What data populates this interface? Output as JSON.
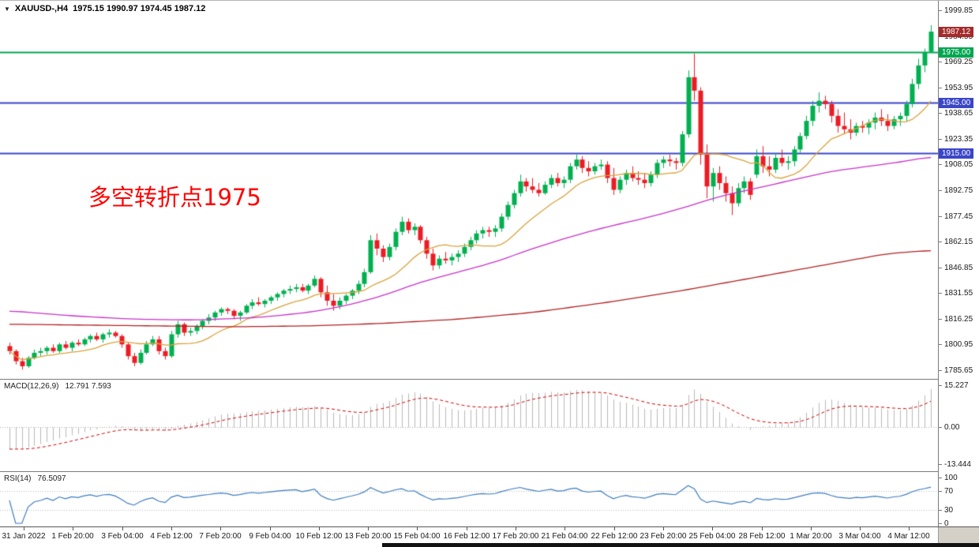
{
  "title_bar": {
    "collapse_icon": "▼",
    "symbol": "XAUUSD-,H4",
    "ohlc": "1975.15 1990.97 1974.45 1987.12"
  },
  "annotation": {
    "text": "多空转折点1975",
    "color": "#FF0000"
  },
  "chart_data": {
    "type": "candlestick",
    "instrument": "XAUUSD-",
    "timeframe": "H4",
    "current_ohlc": {
      "open": 1975.15,
      "high": 1990.97,
      "low": 1974.45,
      "close": 1987.12
    },
    "price_panel": {
      "y_range": [
        1785.65,
        1999.85
      ],
      "y_tick_labels": [
        "1999.85",
        "1984.55",
        "1969.25",
        "1953.95",
        "1938.65",
        "1923.35",
        "1908.05",
        "1892.75",
        "1877.45",
        "1862.15",
        "1846.85",
        "1831.55",
        "1816.25",
        "1800.95",
        "1785.65"
      ],
      "up_color": "#00B050",
      "down_color": "#EC1C24",
      "hlines": [
        {
          "price": 1975.0,
          "tag": "1975.00",
          "color": "#00A651"
        },
        {
          "price": 1945.0,
          "tag": "1945.00",
          "color": "#3A46C8"
        },
        {
          "price": 1915.0,
          "tag": "1915.00",
          "color": "#3A46C8"
        }
      ],
      "current_price_tag": {
        "price": 1987.12,
        "text": "1987.12",
        "color": "#A52A2A"
      },
      "moving_averages": [
        {
          "name": "ma-fast",
          "method": "sma",
          "period": 13,
          "color": "#D9A23B"
        },
        {
          "name": "ma-medium",
          "color": "#C832C8",
          "waypoints": [
            [
              0,
              1821
            ],
            [
              10,
              1818
            ],
            [
              20,
              1816
            ],
            [
              30,
              1815.5
            ],
            [
              40,
              1817
            ],
            [
              48,
              1820
            ],
            [
              54,
              1824
            ],
            [
              60,
              1830
            ],
            [
              66,
              1838
            ],
            [
              72,
              1844
            ],
            [
              78,
              1850
            ],
            [
              84,
              1858
            ],
            [
              90,
              1865
            ],
            [
              96,
              1871
            ],
            [
              102,
              1876
            ],
            [
              108,
              1882
            ],
            [
              114,
              1889
            ],
            [
              120,
              1894
            ],
            [
              126,
              1899
            ],
            [
              132,
              1904
            ],
            [
              138,
              1907
            ],
            [
              144,
              1910
            ],
            [
              148,
              1913
            ]
          ]
        },
        {
          "name": "ma-slow",
          "color": "#B22222",
          "waypoints": [
            [
              0,
              1813
            ],
            [
              12,
              1812.5
            ],
            [
              24,
              1812
            ],
            [
              36,
              1811.5
            ],
            [
              48,
              1812
            ],
            [
              60,
              1813.5
            ],
            [
              72,
              1816
            ],
            [
              84,
              1820
            ],
            [
              96,
              1826
            ],
            [
              108,
              1833
            ],
            [
              120,
              1841
            ],
            [
              132,
              1849
            ],
            [
              141,
              1855
            ],
            [
              148,
              1857
            ]
          ]
        }
      ],
      "candles": [
        [
          1800,
          1802,
          1795,
          1797
        ],
        [
          1797,
          1798,
          1789,
          1791
        ],
        [
          1791,
          1793,
          1786,
          1788
        ],
        [
          1788,
          1794,
          1787,
          1793
        ],
        [
          1793,
          1798,
          1792,
          1796
        ],
        [
          1796,
          1799,
          1794,
          1797
        ],
        [
          1797,
          1800,
          1795,
          1799
        ],
        [
          1799,
          1801,
          1796,
          1797
        ],
        [
          1797,
          1802,
          1796,
          1801
        ],
        [
          1801,
          1803,
          1798,
          1799
        ],
        [
          1799,
          1803,
          1797,
          1802
        ],
        [
          1802,
          1804,
          1800,
          1801
        ],
        [
          1801,
          1805,
          1800,
          1804
        ],
        [
          1804,
          1807,
          1802,
          1806
        ],
        [
          1806,
          1808,
          1803,
          1804
        ],
        [
          1804,
          1808,
          1802,
          1807
        ],
        [
          1807,
          1810,
          1805,
          1808
        ],
        [
          1808,
          1809,
          1805,
          1806
        ],
        [
          1806,
          1807,
          1799,
          1801
        ],
        [
          1801,
          1802,
          1792,
          1794
        ],
        [
          1794,
          1796,
          1788,
          1790
        ],
        [
          1790,
          1798,
          1789,
          1796
        ],
        [
          1796,
          1803,
          1795,
          1801
        ],
        [
          1801,
          1806,
          1800,
          1804
        ],
        [
          1804,
          1806,
          1795,
          1797
        ],
        [
          1797,
          1799,
          1792,
          1794
        ],
        [
          1794,
          1809,
          1793,
          1807
        ],
        [
          1807,
          1815,
          1805,
          1813
        ],
        [
          1813,
          1814,
          1806,
          1808
        ],
        [
          1808,
          1811,
          1806,
          1809
        ],
        [
          1809,
          1813,
          1807,
          1812
        ],
        [
          1812,
          1816,
          1810,
          1815
        ],
        [
          1815,
          1819,
          1813,
          1817
        ],
        [
          1817,
          1821,
          1815,
          1820
        ],
        [
          1820,
          1823,
          1818,
          1822
        ],
        [
          1822,
          1823,
          1819,
          1821
        ],
        [
          1821,
          1822,
          1816,
          1818
        ],
        [
          1818,
          1821,
          1815,
          1820
        ],
        [
          1820,
          1825,
          1819,
          1824
        ],
        [
          1824,
          1828,
          1822,
          1826
        ],
        [
          1826,
          1829,
          1824,
          1825
        ],
        [
          1825,
          1828,
          1823,
          1827
        ],
        [
          1827,
          1830,
          1825,
          1829
        ],
        [
          1829,
          1832,
          1827,
          1831
        ],
        [
          1831,
          1834,
          1829,
          1833
        ],
        [
          1833,
          1836,
          1831,
          1834
        ],
        [
          1834,
          1837,
          1832,
          1835
        ],
        [
          1835,
          1837,
          1832,
          1833
        ],
        [
          1833,
          1837,
          1831,
          1836
        ],
        [
          1836,
          1842,
          1835,
          1840
        ],
        [
          1840,
          1841,
          1829,
          1832
        ],
        [
          1832,
          1836,
          1824,
          1827
        ],
        [
          1827,
          1831,
          1821,
          1824
        ],
        [
          1824,
          1829,
          1822,
          1827
        ],
        [
          1827,
          1831,
          1825,
          1830
        ],
        [
          1830,
          1834,
          1828,
          1833
        ],
        [
          1833,
          1839,
          1831,
          1837
        ],
        [
          1837,
          1846,
          1835,
          1844
        ],
        [
          1844,
          1866,
          1843,
          1863
        ],
        [
          1863,
          1867,
          1854,
          1858
        ],
        [
          1858,
          1860,
          1850,
          1853
        ],
        [
          1853,
          1861,
          1851,
          1859
        ],
        [
          1859,
          1870,
          1857,
          1868
        ],
        [
          1868,
          1877,
          1866,
          1874
        ],
        [
          1874,
          1876,
          1867,
          1869
        ],
        [
          1869,
          1873,
          1866,
          1871
        ],
        [
          1871,
          1872,
          1861,
          1863
        ],
        [
          1863,
          1865,
          1852,
          1855
        ],
        [
          1855,
          1858,
          1845,
          1848
        ],
        [
          1848,
          1854,
          1846,
          1852
        ],
        [
          1852,
          1856,
          1849,
          1851
        ],
        [
          1851,
          1855,
          1848,
          1853
        ],
        [
          1853,
          1857,
          1850,
          1855
        ],
        [
          1855,
          1861,
          1853,
          1859
        ],
        [
          1859,
          1865,
          1857,
          1863
        ],
        [
          1863,
          1869,
          1861,
          1867
        ],
        [
          1867,
          1871,
          1864,
          1869
        ],
        [
          1869,
          1871,
          1865,
          1868
        ],
        [
          1868,
          1872,
          1865,
          1870
        ],
        [
          1870,
          1879,
          1868,
          1877
        ],
        [
          1877,
          1886,
          1875,
          1884
        ],
        [
          1884,
          1893,
          1882,
          1891
        ],
        [
          1891,
          1902,
          1889,
          1898
        ],
        [
          1898,
          1900,
          1892,
          1895
        ],
        [
          1895,
          1900,
          1891,
          1893
        ],
        [
          1893,
          1897,
          1889,
          1891
        ],
        [
          1891,
          1898,
          1890,
          1896
        ],
        [
          1896,
          1902,
          1894,
          1900
        ],
        [
          1900,
          1903,
          1895,
          1897
        ],
        [
          1897,
          1901,
          1894,
          1899
        ],
        [
          1899,
          1909,
          1897,
          1907
        ],
        [
          1907,
          1914,
          1905,
          1911
        ],
        [
          1911,
          1913,
          1903,
          1906
        ],
        [
          1906,
          1910,
          1901,
          1904
        ],
        [
          1904,
          1909,
          1902,
          1907
        ],
        [
          1907,
          1911,
          1905,
          1908
        ],
        [
          1908,
          1910,
          1897,
          1900
        ],
        [
          1900,
          1906,
          1890,
          1893
        ],
        [
          1893,
          1901,
          1891,
          1899
        ],
        [
          1899,
          1905,
          1896,
          1903
        ],
        [
          1903,
          1907,
          1898,
          1900
        ],
        [
          1900,
          1904,
          1896,
          1899
        ],
        [
          1899,
          1903,
          1894,
          1897
        ],
        [
          1897,
          1904,
          1895,
          1902
        ],
        [
          1902,
          1911,
          1900,
          1909
        ],
        [
          1909,
          1913,
          1906,
          1911
        ],
        [
          1911,
          1914,
          1907,
          1910
        ],
        [
          1910,
          1912,
          1905,
          1909
        ],
        [
          1909,
          1928,
          1907,
          1926
        ],
        [
          1926,
          1964,
          1924,
          1960
        ],
        [
          1960,
          1974,
          1946,
          1952
        ],
        [
          1952,
          1954,
          1908,
          1914
        ],
        [
          1914,
          1920,
          1888,
          1895
        ],
        [
          1895,
          1906,
          1886,
          1903
        ],
        [
          1903,
          1907,
          1893,
          1897
        ],
        [
          1897,
          1901,
          1886,
          1891
        ],
        [
          1891,
          1895,
          1878,
          1885
        ],
        [
          1885,
          1897,
          1883,
          1894
        ],
        [
          1894,
          1901,
          1891,
          1898
        ],
        [
          1898,
          1900,
          1887,
          1890
        ],
        [
          1902,
          1917,
          1900,
          1913
        ],
        [
          1913,
          1919,
          1903,
          1907
        ],
        [
          1907,
          1913,
          1901,
          1905
        ],
        [
          1905,
          1915,
          1903,
          1912
        ],
        [
          1912,
          1917,
          1907,
          1909
        ],
        [
          1909,
          1913,
          1905,
          1910
        ],
        [
          1910,
          1919,
          1907,
          1917
        ],
        [
          1917,
          1927,
          1915,
          1925
        ],
        [
          1925,
          1937,
          1923,
          1934
        ],
        [
          1934,
          1946,
          1931,
          1943
        ],
        [
          1943,
          1951,
          1939,
          1946
        ],
        [
          1946,
          1949,
          1941,
          1944
        ],
        [
          1944,
          1946,
          1933,
          1937
        ],
        [
          1937,
          1941,
          1927,
          1931
        ],
        [
          1931,
          1939,
          1926,
          1929
        ],
        [
          1929,
          1935,
          1923,
          1927
        ],
        [
          1927,
          1933,
          1925,
          1931
        ],
        [
          1931,
          1934,
          1927,
          1930
        ],
        [
          1930,
          1935,
          1926,
          1933
        ],
        [
          1933,
          1939,
          1929,
          1936
        ],
        [
          1936,
          1941,
          1931,
          1934
        ],
        [
          1934,
          1938,
          1928,
          1931
        ],
        [
          1931,
          1937,
          1929,
          1935
        ],
        [
          1935,
          1939,
          1931,
          1937
        ],
        [
          1937,
          1946,
          1934,
          1944
        ],
        [
          1944,
          1959,
          1942,
          1956
        ],
        [
          1956,
          1971,
          1953,
          1967
        ],
        [
          1967,
          1977,
          1963,
          1975
        ],
        [
          1975.15,
          1990.97,
          1974.45,
          1987.12
        ]
      ]
    },
    "macd": {
      "label": "MACD(12,26,9)",
      "display_values": "12.791 7.593",
      "fast": 12,
      "slow": 26,
      "signal": 9,
      "seed_offset": 8,
      "y_range": [
        -13.444,
        15.227
      ],
      "y_tick_labels": [
        "15.227",
        "0.00",
        "-13.444"
      ],
      "histogram_color": "#B8B8B8",
      "signal_color": "#D00000"
    },
    "rsi": {
      "label": "RSI(14)",
      "display_value": "76.5097",
      "period": 14,
      "levels": [
        70,
        30
      ],
      "y_range": [
        0,
        100
      ],
      "y_tick_labels": [
        "100",
        "70",
        "30",
        "0"
      ],
      "line_color": "#3E7CC0",
      "level_color": "#BBBBBB"
    },
    "x_tick_labels": [
      "31 Jan 2022",
      "1 Feb 20:00",
      "3 Feb 04:00",
      "4 Feb 12:00",
      "7 Feb 20:00",
      "9 Feb 04:00",
      "10 Feb 12:00",
      "13 Feb 20:00",
      "15 Feb 04:00",
      "16 Feb 12:00",
      "17 Feb 20:00",
      "21 Feb 04:00",
      "22 Feb 12:00",
      "23 Feb 20:00",
      "25 Feb 04:00",
      "28 Feb 12:00",
      "1 Mar 20:00",
      "3 Mar 04:00",
      "4 Mar 12:00"
    ]
  }
}
